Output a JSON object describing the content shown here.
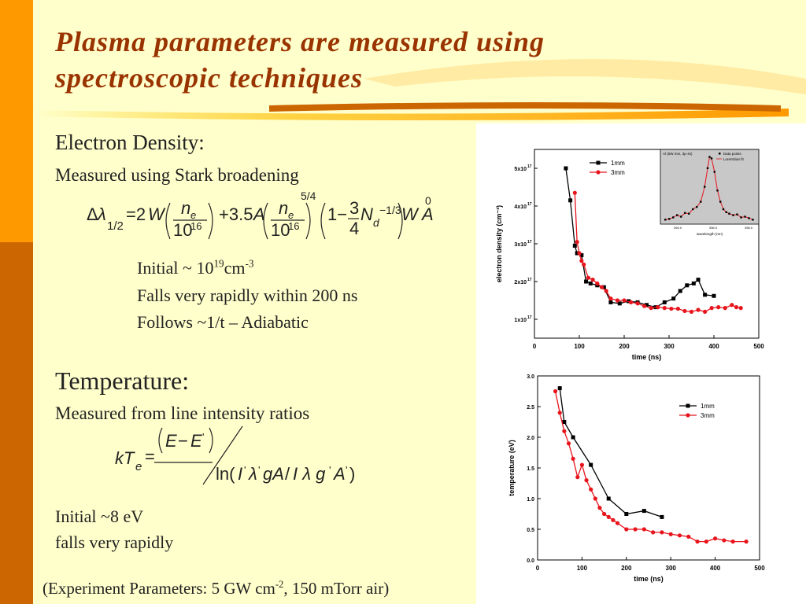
{
  "title": {
    "line1": "Plasma parameters are measured using",
    "line2": "spectroscopic techniques"
  },
  "left": {
    "electron_density_heading": "Electron Density:",
    "stark_line": "Measured using Stark broadening",
    "initial_prefix": "Initial  ~ 10",
    "initial_exp": "19",
    "initial_unit": "cm",
    "initial_unit_exp": "-3",
    "falls_line": "Falls very rapidly within 200 ns",
    "follows_line": "Follows ~1/t – Adiabatic",
    "temperature_heading": "Temperature:",
    "line_ratio": "Measured from line intensity ratios",
    "initial_temp": "Initial ~8 eV",
    "falls_rapidly": "falls very rapidly",
    "experiment_prefix": "(Experiment Parameters: 5 GW cm",
    "experiment_exp": "-2",
    "experiment_suffix": ", 150 mTorr air)"
  },
  "colors": {
    "accent_orange": "#ff9900",
    "accent_brown": "#cc6600",
    "title_color": "#993300",
    "series_black": "#000000",
    "series_red": "#e8141c",
    "background": "#ffffcc"
  },
  "chart_data": [
    {
      "type": "line",
      "xlabel": "time (ns)",
      "ylabel": "electron density (cm⁻³)",
      "xlim": [
        0,
        500
      ],
      "ylim": [
        0.5,
        5.5
      ],
      "xticks": [
        0,
        100,
        200,
        300,
        400,
        500
      ],
      "yticks": [
        1,
        2,
        3,
        4,
        5
      ],
      "ytick_labels": [
        "1x10",
        "2x10",
        "3x10",
        "4x10",
        "5x10"
      ],
      "ytick_exp": "17",
      "legend": "top-left",
      "series": [
        {
          "name": "1mm",
          "color": "#000000",
          "marker": "square",
          "x": [
            70,
            80,
            90,
            95,
            105,
            115,
            125,
            140,
            155,
            170,
            190,
            210,
            230,
            250,
            270,
            290,
            310,
            325,
            340,
            355,
            365,
            380,
            400
          ],
          "y": [
            5.0,
            4.15,
            2.95,
            2.75,
            2.7,
            2.0,
            1.95,
            1.9,
            1.85,
            1.45,
            1.42,
            1.48,
            1.45,
            1.38,
            1.32,
            1.45,
            1.55,
            1.75,
            1.9,
            1.95,
            2.05,
            1.65,
            1.62
          ]
        },
        {
          "name": "3mm",
          "color": "#e8141c",
          "marker": "circle",
          "x": [
            90,
            95,
            100,
            105,
            110,
            120,
            130,
            140,
            150,
            160,
            170,
            185,
            200,
            215,
            230,
            245,
            260,
            275,
            290,
            305,
            320,
            335,
            350,
            365,
            380,
            395,
            410,
            425,
            440,
            450,
            460
          ],
          "y": [
            4.35,
            3.05,
            2.75,
            2.55,
            2.45,
            2.1,
            2.05,
            1.95,
            1.85,
            1.75,
            1.55,
            1.5,
            1.5,
            1.45,
            1.42,
            1.35,
            1.3,
            1.32,
            1.3,
            1.28,
            1.28,
            1.22,
            1.2,
            1.25,
            1.2,
            1.3,
            1.32,
            1.3,
            1.38,
            1.32,
            1.3
          ]
        }
      ],
      "series_names": [
        "1mm",
        "3mm"
      ],
      "inset": {
        "title": "Al (5W mm, 3p-4s)",
        "xlabel": "wavelength (nm)",
        "legend": [
          "Data points",
          "Lorentzian fit"
        ],
        "ticks": [
          "394.0",
          "396.0",
          "398.0"
        ],
        "x": [
          0.05,
          0.09,
          0.13,
          0.17,
          0.21,
          0.25,
          0.29,
          0.33,
          0.37,
          0.41,
          0.45,
          0.48,
          0.5,
          0.52,
          0.55,
          0.58,
          0.61,
          0.64,
          0.67,
          0.7,
          0.74,
          0.78,
          0.82,
          0.86,
          0.9,
          0.94
        ],
        "y": [
          0.06,
          0.07,
          0.09,
          0.12,
          0.1,
          0.15,
          0.14,
          0.2,
          0.23,
          0.3,
          0.5,
          0.75,
          0.9,
          0.88,
          0.7,
          0.45,
          0.3,
          0.2,
          0.16,
          0.14,
          0.12,
          0.13,
          0.09,
          0.1,
          0.08,
          0.06
        ]
      }
    },
    {
      "type": "line",
      "xlabel": "time (ns)",
      "ylabel": "temperature (eV)",
      "xlim": [
        0,
        500
      ],
      "ylim": [
        0,
        3
      ],
      "xticks": [
        0,
        100,
        200,
        300,
        400,
        500
      ],
      "yticks": [
        0.0,
        0.5,
        1.0,
        1.5,
        2.0,
        2.5,
        3.0
      ],
      "legend": "top-right",
      "series": [
        {
          "name": "1mm",
          "color": "#000000",
          "marker": "square",
          "x": [
            50,
            60,
            80,
            120,
            160,
            200,
            240,
            280
          ],
          "y": [
            2.8,
            2.25,
            2.0,
            1.55,
            1.0,
            0.75,
            0.8,
            0.7
          ]
        },
        {
          "name": "3mm",
          "color": "#e8141c",
          "marker": "circle",
          "x": [
            40,
            50,
            60,
            70,
            80,
            90,
            100,
            110,
            120,
            130,
            140,
            150,
            160,
            170,
            180,
            200,
            220,
            240,
            260,
            280,
            300,
            320,
            340,
            360,
            380,
            400,
            420,
            440,
            470
          ],
          "y": [
            2.75,
            2.4,
            2.1,
            1.9,
            1.65,
            1.35,
            1.55,
            1.3,
            1.15,
            1.0,
            0.85,
            0.75,
            0.7,
            0.65,
            0.6,
            0.5,
            0.5,
            0.5,
            0.45,
            0.45,
            0.42,
            0.4,
            0.38,
            0.3,
            0.3,
            0.35,
            0.32,
            0.3,
            0.3
          ]
        }
      ],
      "series_names": [
        "1mm",
        "3mm"
      ]
    }
  ]
}
